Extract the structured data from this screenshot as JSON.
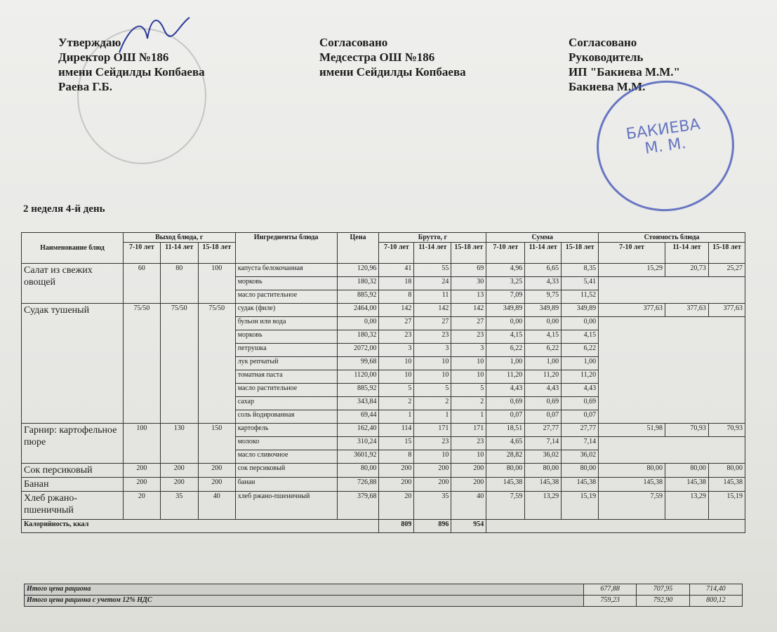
{
  "approve": {
    "lines": [
      "Утверждаю",
      "Директор ОШ №186",
      "имени Сейдилды Копбаева",
      "Раева Г.Б."
    ]
  },
  "agree_nurse": {
    "lines": [
      "Согласовано",
      "Медсестра ОШ №186",
      "имени Сейдилды Копбаева"
    ]
  },
  "agree_head": {
    "lines": [
      "Согласовано",
      "Руководитель",
      "ИП \"Бакиева М.М.\"",
      "Бакиева М.М."
    ]
  },
  "stamp_text": "БАКИЕВА М. М.",
  "day_title": "2 неделя 4-й день",
  "headers": {
    "name": "Наименование блюд",
    "yield": "Выход блюда, г",
    "ingredients": "Ингредиенты блюда",
    "price": "Цена",
    "brutto": "Брутто, г",
    "sum": "Сумма",
    "cost": "Стоимость блюда",
    "ages": [
      "7-10 лет",
      "11-14 лет",
      "15-18 лет"
    ]
  },
  "dishes": [
    {
      "name": "Салат из свежих овощей",
      "yield": [
        "60",
        "80",
        "100"
      ],
      "cost": [
        "15,29",
        "20,73",
        "25,27"
      ],
      "ingredients": [
        {
          "name": "капуста белокочанная",
          "price": "120,96",
          "brutto": [
            "41",
            "55",
            "69"
          ],
          "sum": [
            "4,96",
            "6,65",
            "8,35"
          ]
        },
        {
          "name": "морковь",
          "price": "180,32",
          "brutto": [
            "18",
            "24",
            "30"
          ],
          "sum": [
            "3,25",
            "4,33",
            "5,41"
          ]
        },
        {
          "name": "масло растительное",
          "price": "885,92",
          "brutto": [
            "8",
            "11",
            "13"
          ],
          "sum": [
            "7,09",
            "9,75",
            "11,52"
          ]
        }
      ]
    },
    {
      "name": "Судак тушеный",
      "yield": [
        "75/50",
        "75/50",
        "75/50"
      ],
      "cost": [
        "377,63",
        "377,63",
        "377,63"
      ],
      "ingredients": [
        {
          "name": "судак (филе)",
          "price": "2464,00",
          "brutto": [
            "142",
            "142",
            "142"
          ],
          "sum": [
            "349,89",
            "349,89",
            "349,89"
          ]
        },
        {
          "name": "бульон или вода",
          "price": "0,00",
          "brutto": [
            "27",
            "27",
            "27"
          ],
          "sum": [
            "0,00",
            "0,00",
            "0,00"
          ]
        },
        {
          "name": "морковь",
          "price": "180,32",
          "brutto": [
            "23",
            "23",
            "23"
          ],
          "sum": [
            "4,15",
            "4,15",
            "4,15"
          ]
        },
        {
          "name": "петрушка",
          "price": "2072,00",
          "brutto": [
            "3",
            "3",
            "3"
          ],
          "sum": [
            "6,22",
            "6,22",
            "6,22"
          ]
        },
        {
          "name": "лук репчатый",
          "price": "99,68",
          "brutto": [
            "10",
            "10",
            "10"
          ],
          "sum": [
            "1,00",
            "1,00",
            "1,00"
          ]
        },
        {
          "name": "томатная паста",
          "price": "1120,00",
          "brutto": [
            "10",
            "10",
            "10"
          ],
          "sum": [
            "11,20",
            "11,20",
            "11,20"
          ]
        },
        {
          "name": "масло растительное",
          "price": "885,92",
          "brutto": [
            "5",
            "5",
            "5"
          ],
          "sum": [
            "4,43",
            "4,43",
            "4,43"
          ]
        },
        {
          "name": "сахар",
          "price": "343,84",
          "brutto": [
            "2",
            "2",
            "2"
          ],
          "sum": [
            "0,69",
            "0,69",
            "0,69"
          ]
        },
        {
          "name": "соль йодированная",
          "price": "69,44",
          "brutto": [
            "1",
            "1",
            "1"
          ],
          "sum": [
            "0,07",
            "0,07",
            "0,07"
          ]
        }
      ]
    },
    {
      "name": "Гарнир: картофельное пюре",
      "yield": [
        "100",
        "130",
        "150"
      ],
      "cost": [
        "51,98",
        "70,93",
        "70,93"
      ],
      "ingredients": [
        {
          "name": "картофель",
          "price": "162,40",
          "brutto": [
            "114",
            "171",
            "171"
          ],
          "sum": [
            "18,51",
            "27,77",
            "27,77"
          ]
        },
        {
          "name": "молоко",
          "price": "310,24",
          "brutto": [
            "15",
            "23",
            "23"
          ],
          "sum": [
            "4,65",
            "7,14",
            "7,14"
          ]
        },
        {
          "name": "масло сливочное",
          "price": "3601,92",
          "brutto": [
            "8",
            "10",
            "10"
          ],
          "sum": [
            "28,82",
            "36,02",
            "36,02"
          ]
        }
      ]
    },
    {
      "name": "Сок персиковый",
      "yield": [
        "200",
        "200",
        "200"
      ],
      "cost": [
        "80,00",
        "80,00",
        "80,00"
      ],
      "ingredients": [
        {
          "name": "сок персиковый",
          "price": "80,00",
          "brutto": [
            "200",
            "200",
            "200"
          ],
          "sum": [
            "80,00",
            "80,00",
            "80,00"
          ]
        }
      ]
    },
    {
      "name": "Банан",
      "yield": [
        "200",
        "200",
        "200"
      ],
      "cost": [
        "145,38",
        "145,38",
        "145,38"
      ],
      "ingredients": [
        {
          "name": "банан",
          "price": "726,88",
          "brutto": [
            "200",
            "200",
            "200"
          ],
          "sum": [
            "145,38",
            "145,38",
            "145,38"
          ]
        }
      ]
    },
    {
      "name": "Хлеб ржано-пшеничный",
      "yield": [
        "20",
        "35",
        "40"
      ],
      "cost": [
        "7,59",
        "13,29",
        "15,19"
      ],
      "ingredients": [
        {
          "name": "хлеб ржано-пшеничный",
          "price": "379,68",
          "brutto": [
            "20",
            "35",
            "40"
          ],
          "sum": [
            "7,59",
            "13,29",
            "15,19"
          ]
        }
      ]
    }
  ],
  "calories": {
    "label": "Калорийность, ккал",
    "values": [
      "809",
      "896",
      "954"
    ]
  },
  "totals": [
    {
      "label": "Итого цена рациона",
      "values": [
        "677,88",
        "707,95",
        "714,40"
      ]
    },
    {
      "label": "Итого цена рациона с учетом 12% НДС",
      "values": [
        "759,23",
        "792,90",
        "800,12"
      ]
    }
  ]
}
